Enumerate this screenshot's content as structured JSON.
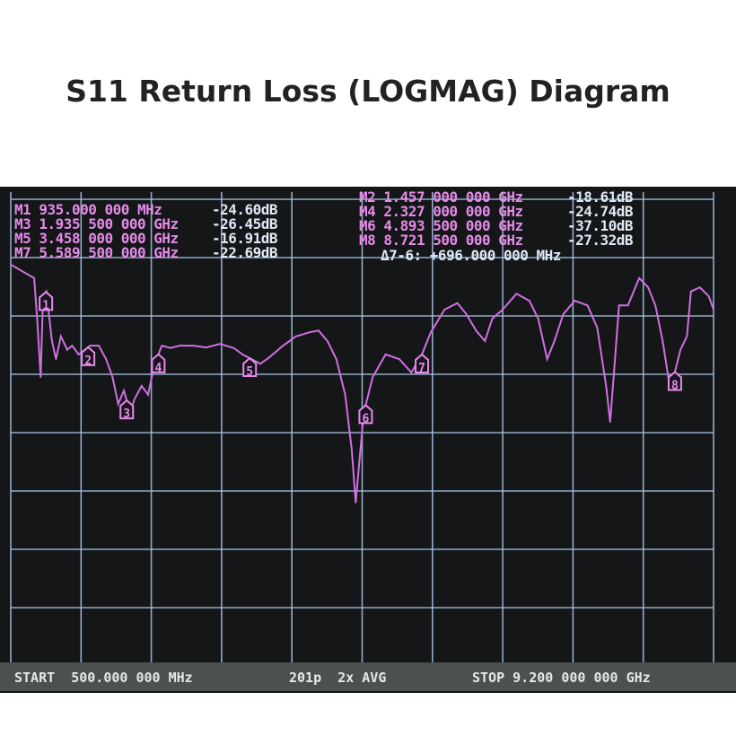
{
  "title": "S11 Return Loss (LOGMAG) Diagram",
  "chart_data": {
    "type": "line",
    "title": "S11 Return Loss (LOGMAG) Diagram",
    "xlabel": "",
    "ylabel": "",
    "x_unit": "GHz",
    "y_unit": "dB",
    "xlim": [
      0.5,
      9.2
    ],
    "ylim": [
      -70,
      10
    ],
    "grid": true,
    "colors": {
      "trace": "#d070e0",
      "grid": "#a9c6e6",
      "background": "#141618",
      "marker": "#e58ae8"
    },
    "series": [
      {
        "x": [
          0.5,
          0.7,
          0.79,
          0.83,
          0.87,
          0.9,
          0.94,
          1.01,
          1.06,
          1.12,
          1.2,
          1.26,
          1.34,
          1.42,
          1.48,
          1.59,
          1.68,
          1.76,
          1.83,
          1.9,
          1.98,
          2.03,
          2.12,
          2.2,
          2.28,
          2.37,
          2.48,
          2.59,
          2.76,
          2.92,
          3.09,
          3.26,
          3.37,
          3.48,
          3.59,
          3.7,
          3.87,
          4.03,
          4.2,
          4.31,
          4.42,
          4.53,
          4.64,
          4.72,
          4.77,
          4.81,
          4.87,
          4.98,
          5.14,
          5.31,
          5.46,
          5.59,
          5.7,
          5.87,
          6.03,
          6.14,
          6.26,
          6.37,
          6.46,
          6.59,
          6.76,
          6.92,
          7.03,
          7.14,
          7.23,
          7.34,
          7.48,
          7.64,
          7.76,
          7.87,
          7.92,
          7.98,
          8.03,
          8.14,
          8.28,
          8.39,
          8.48,
          8.57,
          8.64,
          8.72,
          8.79,
          8.87,
          8.92,
          9.03,
          9.14,
          9.2
        ],
        "y": [
          -1.2,
          -2.8,
          -3.5,
          -11.2,
          -20.5,
          -6.6,
          -5.8,
          -14.3,
          -17.4,
          -13.5,
          -15.8,
          -15.1,
          -16.6,
          -15.8,
          -15.1,
          -15.1,
          -17.4,
          -20.5,
          -25.1,
          -22.8,
          -26.6,
          -24.3,
          -22.0,
          -23.5,
          -18.2,
          -15.1,
          -15.5,
          -15.1,
          -15.1,
          -15.4,
          -14.8,
          -15.5,
          -16.6,
          -17.4,
          -18.2,
          -17.1,
          -15.1,
          -13.5,
          -12.8,
          -12.5,
          -14.3,
          -17.4,
          -23.5,
          -32.8,
          -42.0,
          -35.8,
          -26.6,
          -20.5,
          -16.6,
          -17.4,
          -19.7,
          -16.6,
          -12.8,
          -8.9,
          -7.8,
          -9.7,
          -12.5,
          -14.3,
          -10.5,
          -8.9,
          -6.2,
          -7.4,
          -10.5,
          -17.4,
          -14.3,
          -9.7,
          -7.4,
          -8.2,
          -12.0,
          -22.0,
          -28.2,
          -17.4,
          -8.2,
          -8.2,
          -3.5,
          -5.1,
          -8.2,
          -14.3,
          -20.5,
          -19.7,
          -15.8,
          -13.5,
          -5.8,
          -5.1,
          -6.6,
          -8.9
        ]
      }
    ],
    "markers": [
      {
        "id": "1",
        "label": "M1",
        "freq": "935.000 000 MHz",
        "f": 0.935,
        "value": "-24.60dB"
      },
      {
        "id": "2",
        "label": "M2",
        "freq": "1.457 000 000 GHz",
        "f": 1.457,
        "value": "-18.61dB"
      },
      {
        "id": "3",
        "label": "M3",
        "freq": "1.935 500 000 GHz",
        "f": 1.9355,
        "value": "-26.45dB"
      },
      {
        "id": "4",
        "label": "M4",
        "freq": "2.327 000 000 GHz",
        "f": 2.327,
        "value": "-24.74dB"
      },
      {
        "id": "5",
        "label": "M5",
        "freq": "3.458 000 000 GHz",
        "f": 3.458,
        "value": "-16.91dB"
      },
      {
        "id": "6",
        "label": "M6",
        "freq": "4.893 500 000 GHz",
        "f": 4.8935,
        "value": "-37.10dB"
      },
      {
        "id": "7",
        "label": "M7",
        "freq": "5.589 500 000 GHz",
        "f": 5.5895,
        "value": "-22.69dB"
      },
      {
        "id": "8",
        "label": "M8",
        "freq": "8.721 500 000 GHz",
        "f": 8.7215,
        "value": "-27.32dB"
      }
    ],
    "delta": "Δ7-6: +696.000 000 MHz"
  },
  "footer": {
    "start": "START  500.000 000 MHz",
    "points": "201p  2x AVG",
    "stop": "STOP 9.200 000 000 GHz"
  }
}
